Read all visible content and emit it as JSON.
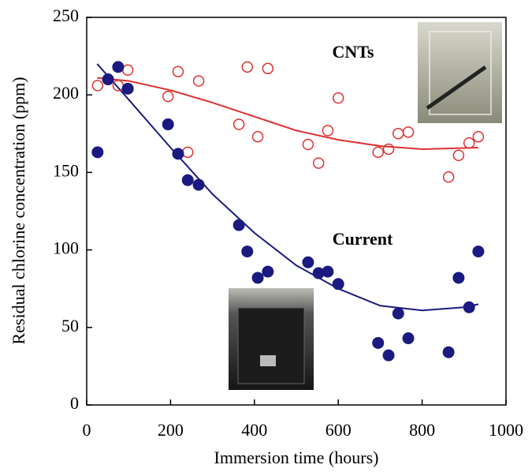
{
  "chart_data": {
    "type": "scatter",
    "x_label": "Immersion time (hours)",
    "y_label": "Residual chlorine concentration (ppm)",
    "xlim": [
      0,
      1000
    ],
    "xticks": [
      0,
      200,
      400,
      600,
      800,
      1000
    ],
    "ylim": [
      0,
      250
    ],
    "yticks": [
      0,
      50,
      100,
      150,
      200,
      250
    ],
    "series": [
      {
        "name": "CNTs",
        "color": "#e03030",
        "marker": "open",
        "x": [
          26,
          75,
          98,
          194,
          218,
          241,
          267,
          363,
          383,
          408,
          432,
          528,
          553,
          575,
          600,
          695,
          720,
          743,
          767,
          863,
          887,
          912,
          934
        ],
        "values": [
          206,
          206,
          216,
          199,
          215,
          163,
          209,
          181,
          218,
          173,
          217,
          168,
          156,
          177,
          198,
          163,
          165,
          175,
          176,
          147,
          161,
          169,
          173
        ]
      },
      {
        "name": "Current",
        "color": "#1a1a80",
        "marker": "filled",
        "x": [
          26,
          51,
          75,
          98,
          194,
          218,
          241,
          267,
          363,
          383,
          408,
          432,
          528,
          553,
          575,
          600,
          695,
          720,
          743,
          767,
          863,
          887,
          912,
          934
        ],
        "values": [
          163,
          210,
          218,
          204,
          181,
          162,
          145,
          142,
          116,
          99,
          82,
          86,
          92,
          85,
          86,
          78,
          40,
          32,
          59,
          43,
          34,
          82,
          63,
          99
        ]
      }
    ],
    "fits": [
      {
        "color": "#e03030",
        "x": [
          25,
          100,
          200,
          300,
          400,
          500,
          600,
          700,
          800,
          934
        ],
        "values": [
          211,
          209,
          203,
          195,
          186,
          177,
          171,
          167,
          165,
          166
        ]
      },
      {
        "color": "#1a1a80",
        "x": [
          25,
          100,
          200,
          300,
          400,
          500,
          600,
          700,
          800,
          900,
          934
        ],
        "values": [
          220,
          197,
          166,
          136,
          111,
          90,
          75,
          64,
          61,
          63,
          65
        ]
      }
    ]
  }
}
